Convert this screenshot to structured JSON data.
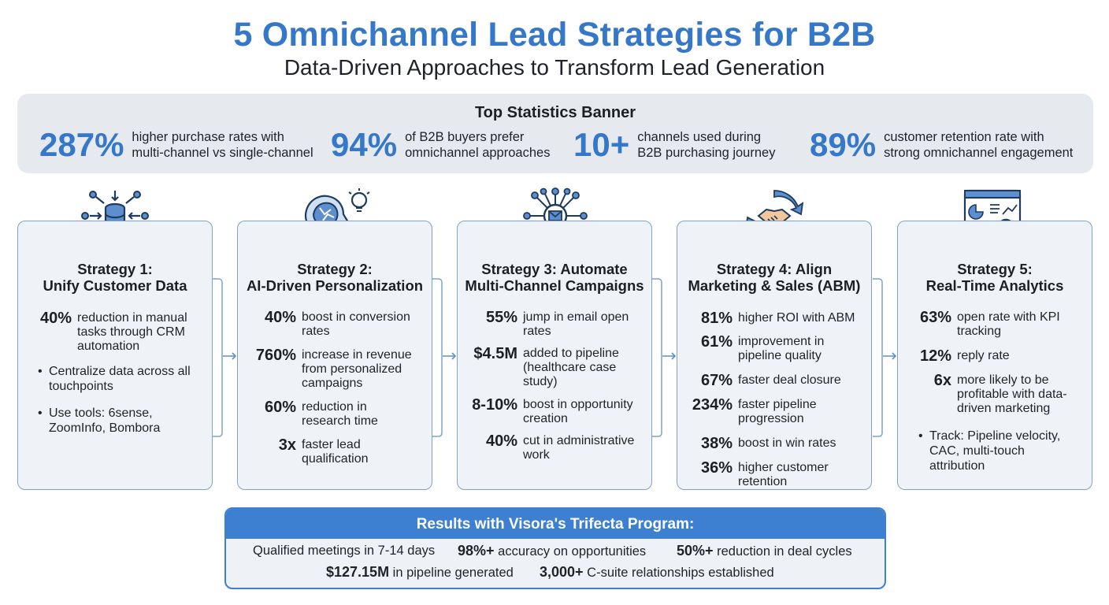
{
  "header": {
    "title": "5 Omnichannel Lead Strategies for B2B",
    "subtitle": "Data-Driven Approaches to Transform Lead Generation"
  },
  "banner": {
    "title": "Top Statistics Banner",
    "stats": [
      {
        "value": "287%",
        "line1": "higher purchase rates with",
        "line2": "multi-channel vs single-channel"
      },
      {
        "value": "94%",
        "line1": "of B2B buyers prefer",
        "line2": "omnichannel approaches"
      },
      {
        "value": "10+",
        "line1": "channels used during",
        "line2": "B2B purchasing journey"
      },
      {
        "value": "89%",
        "line1": "customer retention rate with",
        "line2": "strong omnichannel engagement"
      }
    ]
  },
  "strategies": [
    {
      "icon": "database-network-icon",
      "title1": "Strategy 1:",
      "title2": "Unify Customer Data",
      "stats": [
        {
          "num": "40%",
          "d1": "reduction in manual",
          "d2": "tasks through CRM",
          "d3": "automation"
        }
      ],
      "bullets": [
        {
          "l1": "Centralize data across all",
          "l2": "touchpoints"
        },
        {
          "l1": "Use tools: 6sense,",
          "l2": "ZoomInfo, Bombora"
        }
      ]
    },
    {
      "icon": "ai-brain-lightbulb-icon",
      "title1": "Strategy 2:",
      "title2": "AI-Driven Personalization",
      "stats": [
        {
          "num": "40%",
          "d1": "boost in conversion",
          "d2": "rates"
        },
        {
          "num": "760%",
          "d1": "increase in revenue",
          "d2": "from personalized",
          "d3": "campaigns"
        },
        {
          "num": "60%",
          "d1": "reduction in",
          "d2": "research time"
        },
        {
          "num": "3x",
          "d1": "faster lead",
          "d2": "qualification"
        }
      ]
    },
    {
      "icon": "email-hub-network-icon",
      "title1": "Strategy 3: Automate",
      "title2": "Multi-Channel Campaigns",
      "stats": [
        {
          "num": "55%",
          "d1": "jump in email open",
          "d2": "rates"
        },
        {
          "num": "$4.5M",
          "d1": "added to pipeline",
          "d2": "(healthcare case",
          "d3": "study)"
        },
        {
          "num": "8-10%",
          "d1": "boost in opportunity",
          "d2": "creation"
        },
        {
          "num": "40%",
          "d1": "cut in administrative",
          "d2": "work"
        }
      ]
    },
    {
      "icon": "handshake-cycle-icon",
      "title1": "Strategy 4: Align",
      "title2": "Marketing & Sales (ABM)",
      "stats": [
        {
          "num": "81%",
          "d1": "higher ROI with ABM"
        },
        {
          "num": "61%",
          "d1": "improvement in",
          "d2": "pipeline quality"
        },
        {
          "num": "67%",
          "d1": "faster deal closure"
        },
        {
          "num": "234%",
          "d1": "faster pipeline",
          "d2": "progression"
        },
        {
          "num": "38%",
          "d1": "boost in win rates"
        },
        {
          "num": "36%",
          "d1": "higher customer",
          "d2": "retention"
        }
      ]
    },
    {
      "icon": "analytics-dashboard-icon",
      "title1": "Strategy 5:",
      "title2": "Real-Time Analytics",
      "stats": [
        {
          "num": "63%",
          "d1": "open rate with KPI",
          "d2": "tracking"
        },
        {
          "num": "12%",
          "d1": "reply rate"
        },
        {
          "num": "6x",
          "d1": "more likely to be",
          "d2": "profitable with data-",
          "d3": "driven marketing"
        }
      ],
      "bullets": [
        {
          "l1": "Track: Pipeline velocity,",
          "l2": "CAC, multi-touch",
          "l3": "attribution"
        }
      ]
    }
  ],
  "results": {
    "title": "Results with Visora's Trifecta Program:",
    "r1_text": "Qualified meetings in 7-14 days",
    "r2_num": "98%+",
    "r2_text": "accuracy on opportunities",
    "r3_num": "50%+",
    "r3_text": "reduction in deal cycles",
    "r4_num": "$127.15M",
    "r4_text": "in pipeline generated",
    "r5_num": "3,000+",
    "r5_text": "C-suite relationships established"
  },
  "colors": {
    "accent": "#3577c9",
    "card_border": "#7fa3cc",
    "card_bg": "#eff2f6",
    "banner_bg": "#e6e9ee"
  }
}
